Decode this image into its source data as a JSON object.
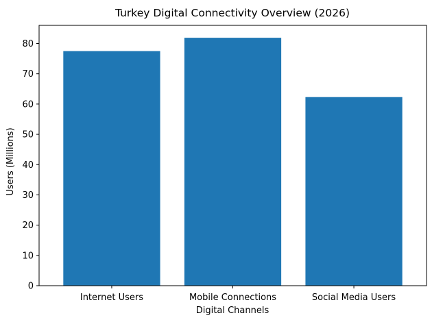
{
  "chart_data": {
    "type": "bar",
    "title": "Turkey Digital Connectivity Overview (2026)",
    "xlabel": "Digital Channels",
    "ylabel": "Users (Millions)",
    "categories": [
      "Internet Users",
      "Mobile Connections",
      "Social Media Users"
    ],
    "values": [
      77.5,
      81.9,
      62.3
    ],
    "ylim": [
      0,
      86
    ],
    "yticks": [
      0,
      10,
      20,
      30,
      40,
      50,
      60,
      70,
      80
    ],
    "grid": false,
    "bar_color": "#1f77b4"
  }
}
